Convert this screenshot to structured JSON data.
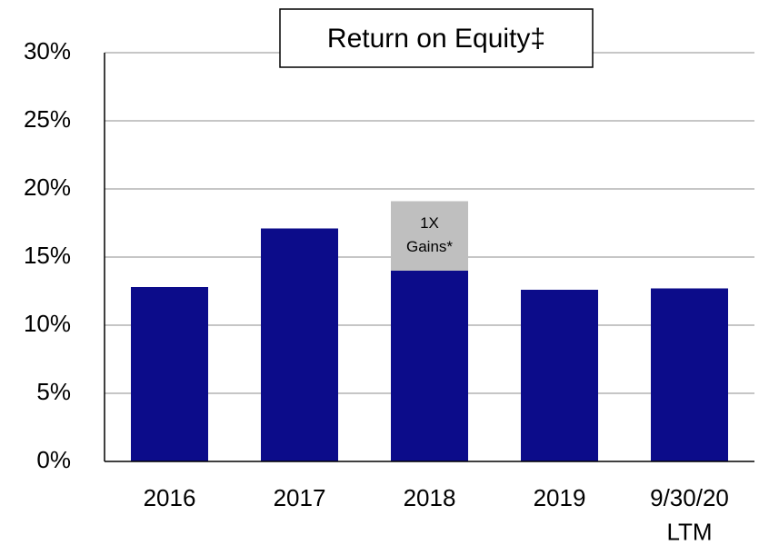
{
  "chart_data": {
    "type": "stacked_bar",
    "title": "Return on Equity‡",
    "categories": [
      "2016",
      "2017",
      "2018",
      "2019",
      "9/30/20\nLTM"
    ],
    "series": [
      {
        "color": "#0c0c8a",
        "values": [
          12.8,
          17.1,
          14.0,
          12.6,
          12.7
        ]
      },
      {
        "color": "#bfbfbf",
        "values": [
          null,
          null,
          5.1,
          null,
          null
        ]
      }
    ],
    "annotation": [
      "1X",
      "Gains*"
    ],
    "ylim": [
      0,
      30
    ],
    "yticks": [
      {
        "value": 0,
        "label": "0%"
      },
      {
        "value": 5,
        "label": "5%"
      },
      {
        "value": 10,
        "label": "10%"
      },
      {
        "value": 15,
        "label": "15%"
      },
      {
        "value": 20,
        "label": "20%"
      },
      {
        "value": 25,
        "label": "25%"
      },
      {
        "value": 30,
        "label": "30%"
      }
    ],
    "grid": true
  }
}
